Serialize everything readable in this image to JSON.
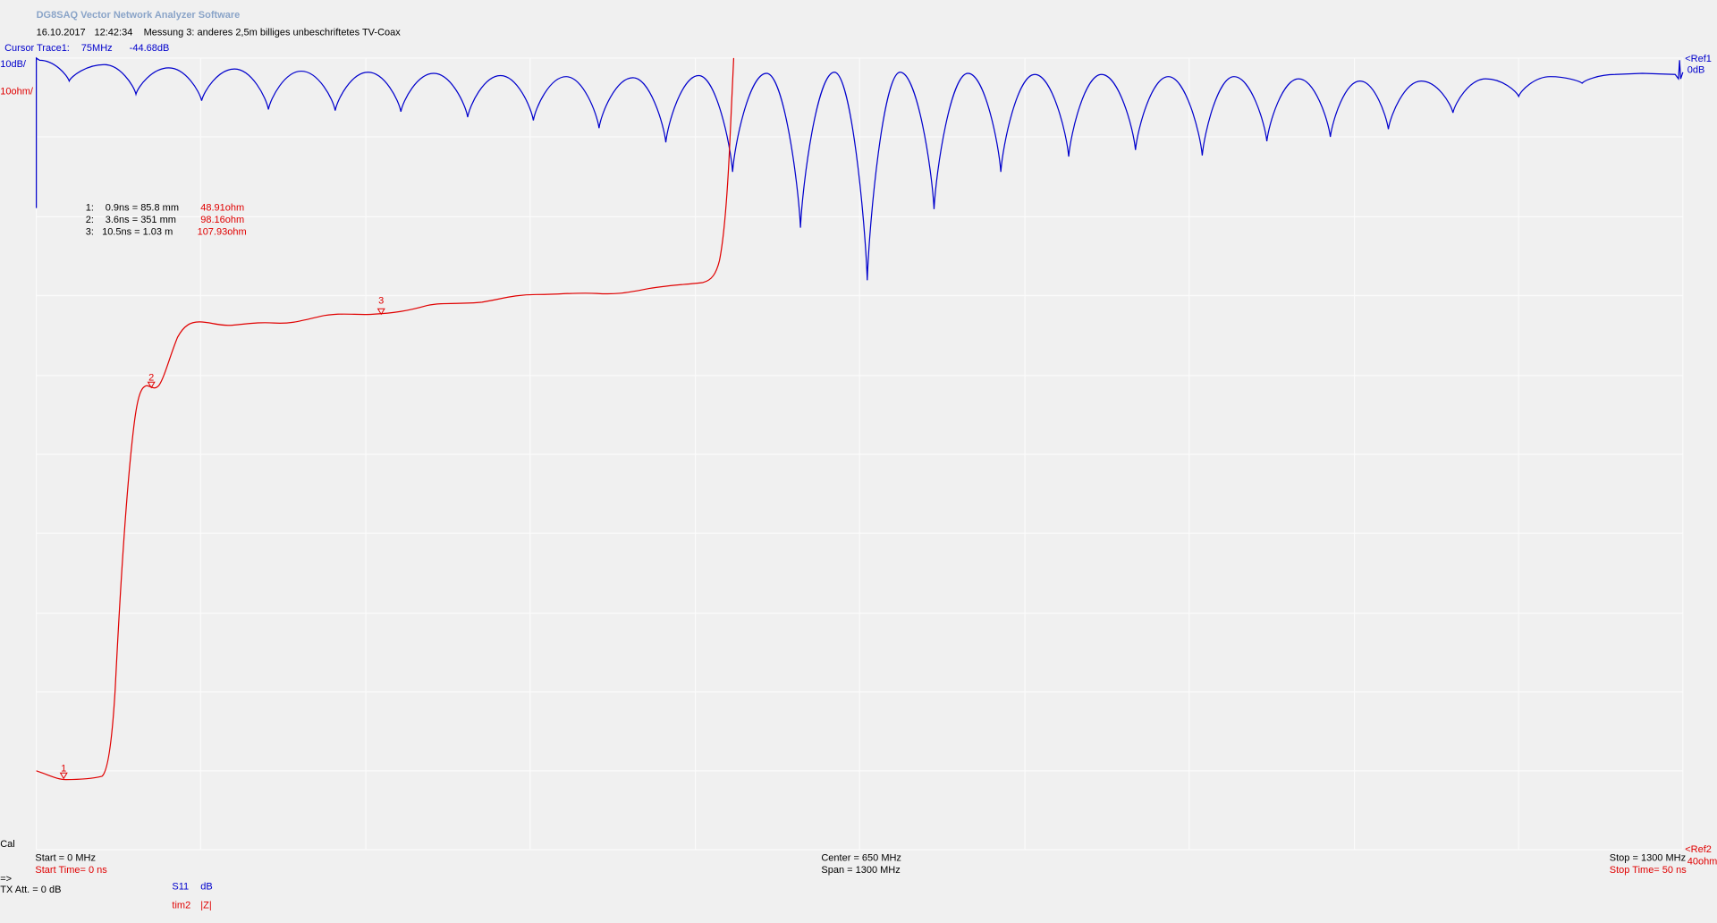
{
  "header": {
    "title": "DG8SAQ Vector Network Analyzer Software",
    "date": "16.10.2017",
    "time": "12:42:34",
    "measurement": "Messung 3: anderes 2,5m billiges unbeschriftetes TV-Coax"
  },
  "cursor": {
    "label": "Cursor Trace1:",
    "frequency": "75MHz",
    "value": "-44.68dB"
  },
  "scales": {
    "trace1_per_div": "10dB/",
    "trace2_per_div": "10ohm/",
    "ref1": "<Ref1",
    "ref1_value": "0dB",
    "ref2": "<Ref2",
    "ref2_value": "40ohm"
  },
  "markers": [
    {
      "id": "1:",
      "position": "0.9ns = 85.8 mm",
      "impedance": "48.91ohm",
      "flag": "1"
    },
    {
      "id": "2:",
      "position": "3.6ns = 351 mm",
      "impedance": "98.16ohm",
      "flag": "2"
    },
    {
      "id": "3:",
      "position": "10.5ns = 1.03 m",
      "impedance": "107.93ohm",
      "flag": "3"
    }
  ],
  "footer": {
    "cal": "Cal",
    "start": "Start = 0 MHz",
    "start_time": "Start Time= 0 ns",
    "center": "Center = 650 MHz",
    "span": "Span = 1300 MHz",
    "stop": "Stop = 1300 MHz",
    "stop_time": "Stop Time= 50 ns",
    "arrow": "=>",
    "tx_att": "TX Att.   = 0 dB",
    "trace1_name": "S11",
    "trace1_format": "dB",
    "trace2_name": "tim2",
    "trace2_format": "|Z|"
  }
}
